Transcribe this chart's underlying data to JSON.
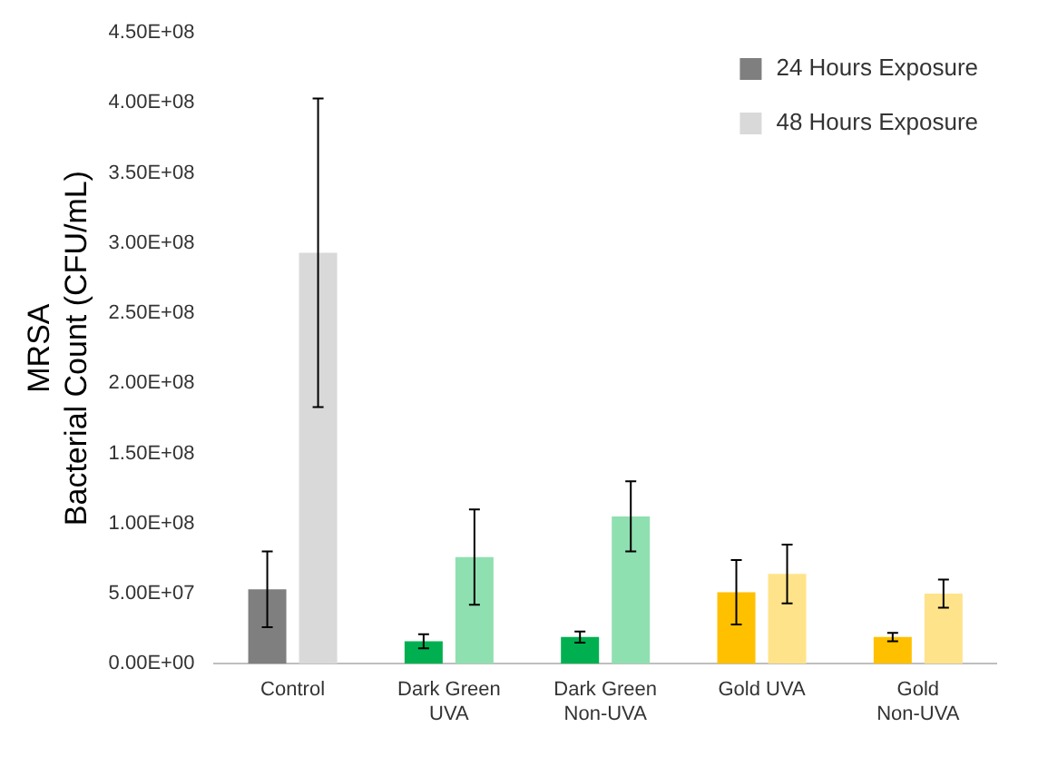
{
  "chart_data": {
    "type": "bar",
    "ylabel": "MRSA\nBacterial Count (CFU/mL)",
    "categories": [
      "Control",
      "Dark Green UVA",
      "Dark Green Non-UVA",
      "Gold UVA",
      "Gold Non-UVA"
    ],
    "series": [
      {
        "name": "24 Hours Exposure",
        "color": "#7f7f7f",
        "colors": [
          "#7f7f7f",
          "#00b050",
          "#00b050",
          "#ffc000",
          "#ffc000"
        ],
        "values": [
          53000000,
          16000000,
          19000000,
          51000000,
          19000000
        ],
        "errors": [
          27000000,
          5000000,
          4000000,
          23000000,
          3000000
        ]
      },
      {
        "name": "48 Hours Exposure",
        "color": "#d9d9d9",
        "colors": [
          "#d9d9d9",
          "#8fe0b0",
          "#8fe0b0",
          "#ffe38a",
          "#ffe38a"
        ],
        "values": [
          293000000,
          76000000,
          105000000,
          64000000,
          50000000
        ],
        "errors": [
          110000000,
          34000000,
          25000000,
          21000000,
          10000000
        ]
      }
    ],
    "ylim": [
      0,
      450000000
    ],
    "yticks": [
      {
        "value": 0,
        "label": "0.00E+00"
      },
      {
        "value": 50000000,
        "label": "5.00E+07"
      },
      {
        "value": 100000000,
        "label": "1.00E+08"
      },
      {
        "value": 150000000,
        "label": "1.50E+08"
      },
      {
        "value": 200000000,
        "label": "2.00E+08"
      },
      {
        "value": 250000000,
        "label": "2.50E+08"
      },
      {
        "value": 300000000,
        "label": "3.00E+08"
      },
      {
        "value": 350000000,
        "label": "3.50E+08"
      },
      {
        "value": 400000000,
        "label": "4.00E+08"
      },
      {
        "value": 450000000,
        "label": "4.50E+08"
      }
    ],
    "grid": false,
    "legend": "top right"
  }
}
